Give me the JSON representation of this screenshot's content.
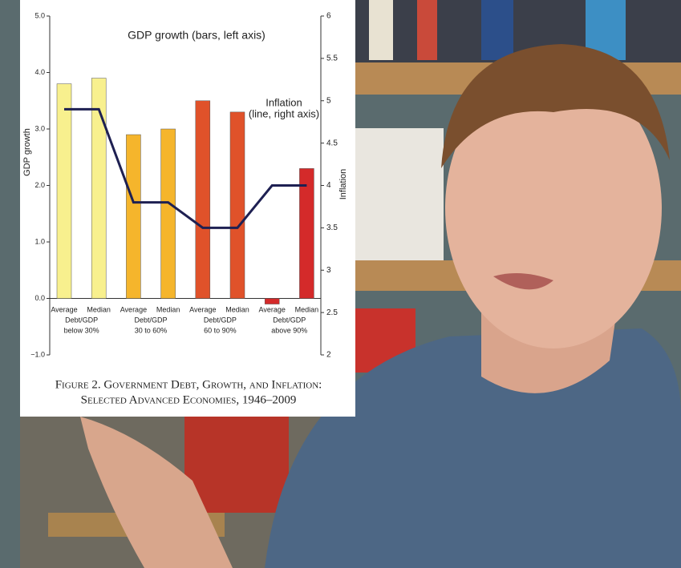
{
  "chart_data": {
    "type": "bar",
    "title": "GDP growth (bars, left axis)",
    "line_annotation": [
      "Inflation",
      "(line, right axis)"
    ],
    "ylabel": "GDP growth",
    "y2label": "Inflation",
    "categories": [
      "Average",
      "Median",
      "Average",
      "Median",
      "Average",
      "Median",
      "Average",
      "Median"
    ],
    "group_labels": [
      [
        "Debt/GDP",
        "below 30%"
      ],
      [
        "Debt/GDP",
        "30 to 60%"
      ],
      [
        "Debt/GDP",
        "60 to 90%"
      ],
      [
        "Debt/GDP",
        "above 90%"
      ]
    ],
    "series": [
      {
        "type": "bar",
        "values": [
          3.8,
          3.9,
          2.9,
          3.0,
          3.5,
          3.3,
          -0.1,
          2.3
        ],
        "colors": [
          "#f8f08e",
          "#f8f08e",
          "#f5b52c",
          "#f5b52c",
          "#e0522a",
          "#e0522a",
          "#d42a2a",
          "#d42a2a"
        ]
      },
      {
        "type": "line",
        "axis": "y2",
        "color": "#1e2052",
        "values": [
          4.9,
          4.9,
          3.8,
          3.8,
          3.5,
          3.5,
          4.0,
          4.0
        ]
      }
    ],
    "ylim": [
      -1,
      5
    ],
    "yticks": [
      {
        "value": -1,
        "label": "−1.0"
      },
      {
        "value": 0,
        "label": "0.0"
      },
      {
        "value": 1,
        "label": "1.0"
      },
      {
        "value": 2,
        "label": "2.0"
      },
      {
        "value": 3,
        "label": "3.0"
      },
      {
        "value": 4,
        "label": "4.0"
      },
      {
        "value": 5,
        "label": "5.0"
      }
    ],
    "y2lim": [
      2,
      6
    ],
    "y2ticks": [
      2,
      2.5,
      3,
      3.5,
      4,
      4.5,
      5,
      5.5,
      6
    ],
    "caption": [
      "Figure 2. Government Debt, Growth, and Inflation:",
      "Selected Advanced Economies, 1946–2009"
    ]
  }
}
